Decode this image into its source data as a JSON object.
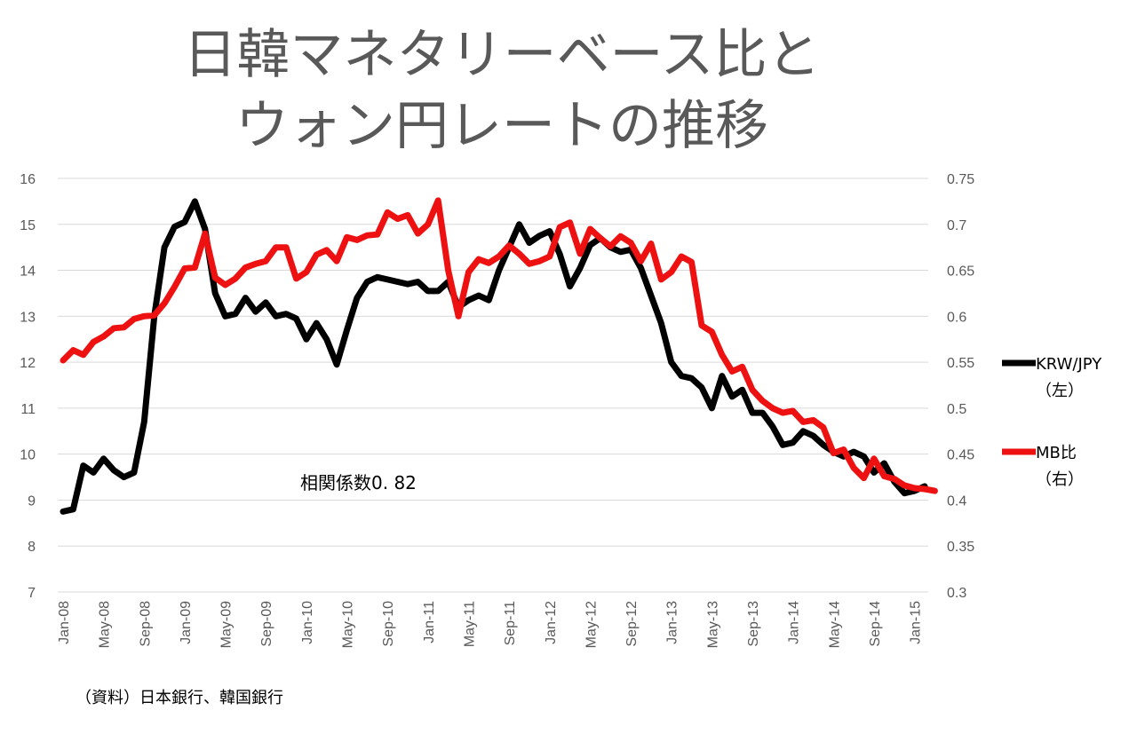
{
  "title_line1": "日韓マネタリーベース比と",
  "title_line2": "ウォン円レートの推移",
  "source_note": "（資料）日本銀行、韓国銀行",
  "colors": {
    "krw": "#000000",
    "mb": "#ee1111",
    "grid": "#d9d9d9",
    "text": "#595959"
  },
  "chart_data": {
    "type": "line",
    "title": "日韓マネタリーベース比とウォン円レート の推移",
    "annotation": "相関係数0. 82",
    "x_tick_labels": [
      "Jan-08",
      "May-08",
      "Sep-08",
      "Jan-09",
      "May-09",
      "Sep-09",
      "Jan-10",
      "May-10",
      "Sep-10",
      "Jan-11",
      "May-11",
      "Sep-11",
      "Jan-12",
      "May-12",
      "Sep-12",
      "Jan-13",
      "May-13",
      "Sep-13",
      "Jan-14",
      "May-14",
      "Sep-14",
      "Jan-15"
    ],
    "y_left": {
      "ylim": [
        7,
        16
      ],
      "ticks": [
        7,
        8,
        9,
        10,
        11,
        12,
        13,
        14,
        15,
        16
      ]
    },
    "y_right": {
      "ylim": [
        0.3,
        0.75
      ],
      "ticks": [
        "0.3",
        "0.35",
        "0.4",
        "0.45",
        "0.5",
        "0.55",
        "0.6",
        "0.65",
        "0.7",
        "0.75"
      ]
    },
    "series": [
      {
        "name": "KRW/JPY",
        "legend_line1": "KRW/JPY",
        "legend_line2": "（左）",
        "axis": "left",
        "values": [
          8.75,
          8.8,
          9.75,
          9.6,
          9.9,
          9.65,
          9.5,
          9.6,
          10.7,
          13.0,
          14.5,
          14.95,
          15.05,
          15.5,
          14.9,
          13.5,
          13.0,
          13.05,
          13.4,
          13.1,
          13.3,
          13.0,
          13.05,
          12.95,
          12.5,
          12.85,
          12.5,
          11.95,
          12.7,
          13.4,
          13.75,
          13.85,
          13.8,
          13.75,
          13.7,
          13.75,
          13.55,
          13.55,
          13.75,
          13.2,
          13.35,
          13.45,
          13.35,
          14.0,
          14.5,
          15.0,
          14.6,
          14.75,
          14.85,
          14.35,
          13.65,
          14.05,
          14.55,
          14.7,
          14.5,
          14.4,
          14.45,
          14.05,
          13.45,
          12.85,
          12.0,
          11.7,
          11.65,
          11.45,
          11.0,
          11.7,
          11.25,
          11.4,
          10.9,
          10.9,
          10.6,
          10.2,
          10.25,
          10.5,
          10.4,
          10.2,
          10.05,
          9.95,
          10.05,
          9.95,
          9.6,
          9.8,
          9.4,
          9.15,
          9.2,
          9.3
        ]
      },
      {
        "name": "MB比",
        "legend_line1": "MB比",
        "legend_line2": "（右）",
        "axis": "right",
        "values": [
          0.552,
          0.563,
          0.558,
          0.572,
          0.578,
          0.587,
          0.588,
          0.597,
          0.6,
          0.601,
          0.614,
          0.632,
          0.652,
          0.653,
          0.69,
          0.642,
          0.634,
          0.641,
          0.653,
          0.657,
          0.66,
          0.675,
          0.675,
          0.641,
          0.648,
          0.667,
          0.672,
          0.66,
          0.686,
          0.683,
          0.688,
          0.689,
          0.713,
          0.706,
          0.71,
          0.69,
          0.7,
          0.726,
          0.65,
          0.6,
          0.648,
          0.662,
          0.658,
          0.665,
          0.677,
          0.668,
          0.657,
          0.66,
          0.665,
          0.697,
          0.702,
          0.668,
          0.695,
          0.685,
          0.676,
          0.687,
          0.68,
          0.66,
          0.679,
          0.64,
          0.648,
          0.665,
          0.659,
          0.59,
          0.583,
          0.558,
          0.54,
          0.545,
          0.52,
          0.508,
          0.5,
          0.495,
          0.497,
          0.485,
          0.487,
          0.479,
          0.451,
          0.455,
          0.435,
          0.424,
          0.445,
          0.426,
          0.423,
          0.416,
          0.413,
          0.412,
          0.41
        ]
      }
    ]
  }
}
